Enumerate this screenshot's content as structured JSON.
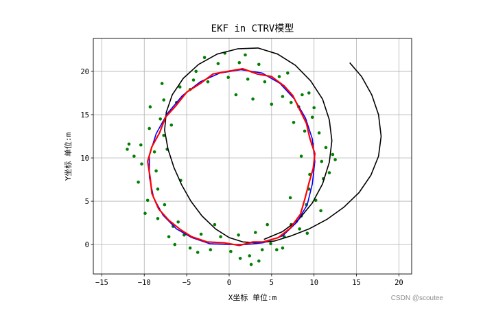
{
  "watermark": "CSDN @scoutee",
  "chart_data": {
    "type": "scatter",
    "title": "EKF in CTRV模型",
    "xlabel": "X坐标 单位:m",
    "ylabel": "Y坐标 单位:m",
    "xlim": [
      -16,
      21.5
    ],
    "ylim": [
      -3.4,
      23.8
    ],
    "xticks": [
      -15,
      -10,
      -5,
      0,
      5,
      10,
      15,
      20
    ],
    "yticks": [
      0,
      5,
      10,
      15,
      20
    ],
    "grid": true,
    "colors": {
      "measurements": "#008000",
      "ground_truth": "#0000ff",
      "estimate": "#ff0000",
      "dead_reckoning": "#000000"
    },
    "series": [
      {
        "kind": "line",
        "color": "#000000",
        "points": [
          [
            14.2,
            21.0
          ],
          [
            15.6,
            19.4
          ],
          [
            16.8,
            17.3
          ],
          [
            17.6,
            15.0
          ],
          [
            17.9,
            12.5
          ],
          [
            17.6,
            10.2
          ],
          [
            16.7,
            8.0
          ],
          [
            15.3,
            6.0
          ],
          [
            13.5,
            4.3
          ],
          [
            11.5,
            2.9
          ],
          [
            9.4,
            1.8
          ],
          [
            7.3,
            1.0
          ],
          [
            5.3,
            0.4
          ],
          [
            3.4,
            0.2
          ],
          [
            1.6,
            0.3
          ],
          [
            0.0,
            0.8
          ],
          [
            -1.6,
            1.8
          ],
          [
            -3.2,
            3.3
          ],
          [
            -4.5,
            5.0
          ],
          [
            -5.6,
            6.9
          ],
          [
            -6.5,
            8.9
          ],
          [
            -7.2,
            11.0
          ],
          [
            -7.6,
            13.2
          ],
          [
            -7.4,
            15.3
          ],
          [
            -6.7,
            17.3
          ],
          [
            -5.4,
            19.2
          ],
          [
            -3.6,
            20.8
          ],
          [
            -1.4,
            22.0
          ],
          [
            1.0,
            22.6
          ],
          [
            3.4,
            22.7
          ],
          [
            5.7,
            22.0
          ],
          [
            7.8,
            20.7
          ],
          [
            9.6,
            18.9
          ],
          [
            11.0,
            16.8
          ],
          [
            11.8,
            14.4
          ],
          [
            12.1,
            12.0
          ],
          [
            11.8,
            9.5
          ],
          [
            11.0,
            7.0
          ],
          [
            9.8,
            4.8
          ],
          [
            8.2,
            2.9
          ],
          [
            6.3,
            1.5
          ],
          [
            4.1,
            0.6
          ]
        ]
      },
      {
        "kind": "line",
        "color": "#0000ff",
        "points": [
          [
            4.0,
            0.2
          ],
          [
            6.3,
            1.0
          ],
          [
            8.0,
            2.6
          ],
          [
            9.2,
            4.6
          ],
          [
            9.8,
            7.0
          ],
          [
            10.1,
            9.6
          ],
          [
            9.8,
            12.2
          ],
          [
            9.0,
            14.6
          ],
          [
            7.7,
            16.8
          ],
          [
            6.0,
            18.6
          ],
          [
            3.9,
            19.8
          ],
          [
            1.4,
            20.2
          ],
          [
            -1.1,
            19.8
          ],
          [
            -3.4,
            18.8
          ],
          [
            -5.5,
            17.2
          ],
          [
            -7.3,
            15.1
          ],
          [
            -8.6,
            12.8
          ],
          [
            -9.4,
            10.3
          ],
          [
            -9.4,
            7.8
          ],
          [
            -8.9,
            5.4
          ],
          [
            -7.8,
            3.4
          ],
          [
            -6.2,
            1.8
          ],
          [
            -4.4,
            0.8
          ],
          [
            -2.3,
            0.1
          ],
          [
            0.0,
            0.0
          ],
          [
            2.0,
            0.0
          ],
          [
            4.0,
            0.2
          ]
        ]
      },
      {
        "kind": "line",
        "color": "#ff0000",
        "points": [
          [
            4.0,
            0.3
          ],
          [
            5.8,
            0.8
          ],
          [
            7.2,
            1.9
          ],
          [
            8.4,
            3.5
          ],
          [
            8.9,
            5.2
          ],
          [
            9.4,
            7.1
          ],
          [
            9.9,
            8.8
          ],
          [
            10.1,
            10.5
          ],
          [
            9.5,
            12.3
          ],
          [
            9.1,
            14.0
          ],
          [
            8.2,
            15.8
          ],
          [
            7.5,
            17.2
          ],
          [
            6.5,
            18.3
          ],
          [
            5.0,
            19.4
          ],
          [
            3.3,
            19.7
          ],
          [
            1.6,
            20.3
          ],
          [
            -0.2,
            20.0
          ],
          [
            -1.9,
            19.7
          ],
          [
            -3.4,
            18.6
          ],
          [
            -5.0,
            17.6
          ],
          [
            -6.3,
            16.0
          ],
          [
            -7.5,
            14.7
          ],
          [
            -8.2,
            12.9
          ],
          [
            -9.1,
            11.3
          ],
          [
            -9.6,
            9.6
          ],
          [
            -9.3,
            7.7
          ],
          [
            -9.1,
            5.9
          ],
          [
            -8.3,
            4.1
          ],
          [
            -7.1,
            2.8
          ],
          [
            -5.7,
            1.7
          ],
          [
            -4.4,
            0.9
          ],
          [
            -2.6,
            0.3
          ],
          [
            -0.6,
            0.2
          ],
          [
            1.2,
            -0.1
          ],
          [
            2.8,
            0.3
          ],
          [
            4.0,
            0.3
          ]
        ]
      },
      {
        "kind": "scatter",
        "color": "#008000",
        "points": [
          [
            4.9,
            0.1
          ],
          [
            5.6,
            -0.6
          ],
          [
            6.5,
            0.9
          ],
          [
            7.3,
            2.3
          ],
          [
            8.3,
            1.8
          ],
          [
            9.1,
            4.6
          ],
          [
            8.5,
            3.3
          ],
          [
            10.2,
            5.1
          ],
          [
            9.4,
            6.4
          ],
          [
            11.1,
            7.6
          ],
          [
            9.5,
            8.1
          ],
          [
            10.9,
            9.6
          ],
          [
            9.8,
            11.6
          ],
          [
            11.4,
            11.2
          ],
          [
            10.6,
            12.9
          ],
          [
            8.9,
            13.1
          ],
          [
            9.8,
            14.7
          ],
          [
            8.2,
            15.9
          ],
          [
            7.3,
            16.4
          ],
          [
            8.6,
            17.3
          ],
          [
            6.3,
            17.1
          ],
          [
            5.9,
            19.4
          ],
          [
            4.2,
            18.8
          ],
          [
            3.5,
            20.8
          ],
          [
            2.2,
            19.1
          ],
          [
            1.2,
            21.0
          ],
          [
            -0.1,
            19.3
          ],
          [
            -1.3,
            20.9
          ],
          [
            -2.5,
            18.8
          ],
          [
            -3.9,
            20.0
          ],
          [
            -4.6,
            17.9
          ],
          [
            -5.8,
            18.2
          ],
          [
            -6.2,
            16.4
          ],
          [
            -7.7,
            16.7
          ],
          [
            -8.1,
            14.5
          ],
          [
            -9.4,
            13.4
          ],
          [
            -7.7,
            12.6
          ],
          [
            -10.4,
            11.5
          ],
          [
            -8.8,
            10.7
          ],
          [
            -10.3,
            9.3
          ],
          [
            -8.6,
            8.5
          ],
          [
            -10.7,
            7.2
          ],
          [
            -8.4,
            6.4
          ],
          [
            -9.6,
            5.1
          ],
          [
            -7.6,
            4.6
          ],
          [
            -8.4,
            3.0
          ],
          [
            -6.6,
            2.1
          ],
          [
            -7.1,
            0.9
          ],
          [
            -5.3,
            1.1
          ],
          [
            -4.6,
            -0.4
          ],
          [
            -3.3,
            1.2
          ],
          [
            -2.2,
            -0.6
          ],
          [
            -1.0,
            0.9
          ],
          [
            0.2,
            -0.8
          ],
          [
            1.1,
            1.1
          ],
          [
            2.4,
            -1.3
          ],
          [
            3.1,
            1.4
          ],
          [
            3.9,
            -0.6
          ],
          [
            11.8,
            8.3
          ],
          [
            10.8,
            3.9
          ],
          [
            -11.2,
            10.2
          ],
          [
            -11.8,
            11.6
          ],
          [
            -9.3,
            15.9
          ],
          [
            6.9,
            19.8
          ],
          [
            9.4,
            17.5
          ],
          [
            -2.9,
            21.6
          ],
          [
            1.9,
            21.9
          ],
          [
            12.2,
            10.4
          ],
          [
            -6.4,
            0.0
          ],
          [
            2.6,
            -2.3
          ],
          [
            6.3,
            -0.4
          ],
          [
            -3.7,
            -0.9
          ],
          [
            -7.9,
            18.6
          ],
          [
            7.6,
            14.1
          ],
          [
            -6.8,
            13.8
          ],
          [
            5.0,
            16.2
          ],
          [
            -5.7,
            7.4
          ],
          [
            9.2,
            1.3
          ],
          [
            -1.7,
            2.3
          ],
          [
            0.8,
            17.3
          ],
          [
            2.8,
            16.8
          ],
          [
            -4.2,
            19.0
          ],
          [
            -6.0,
            2.6
          ],
          [
            8.5,
            10.2
          ],
          [
            7.2,
            5.4
          ],
          [
            -7.3,
            11.0
          ],
          [
            10.0,
            15.8
          ],
          [
            1.3,
            -1.6
          ],
          [
            -9.9,
            3.6
          ],
          [
            4.5,
            2.3
          ],
          [
            3.5,
            -1.9
          ],
          [
            -0.5,
            22.1
          ],
          [
            12.5,
            9.8
          ],
          [
            -12.0,
            11.0
          ]
        ]
      }
    ]
  }
}
